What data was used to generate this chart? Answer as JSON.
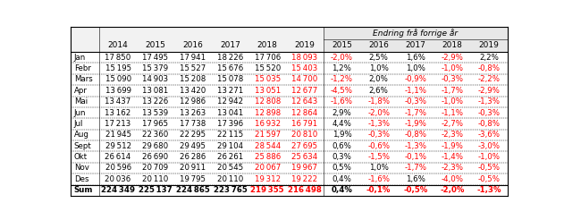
{
  "header_top": "Endring frå forrige år",
  "rows": [
    {
      "label": "Jan",
      "vals": [
        17850,
        17495,
        17941,
        18226,
        17706,
        18093
      ],
      "pct": [
        "-2,0%",
        "2,5%",
        "1,6%",
        "-2,9%",
        "2,2%"
      ],
      "red2018": false,
      "red2019": true
    },
    {
      "label": "Febr",
      "vals": [
        15195,
        15379,
        15527,
        15676,
        15520,
        15403
      ],
      "pct": [
        "1,2%",
        "1,0%",
        "1,0%",
        "-1,0%",
        "-0,8%"
      ],
      "red2018": false,
      "red2019": true
    },
    {
      "label": "Mars",
      "vals": [
        15090,
        14903,
        15208,
        15078,
        15035,
        14700
      ],
      "pct": [
        "-1,2%",
        "2,0%",
        "-0,9%",
        "-0,3%",
        "-2,2%"
      ],
      "red2018": true,
      "red2019": true
    },
    {
      "label": "Apr",
      "vals": [
        13699,
        13081,
        13420,
        13271,
        13051,
        12677
      ],
      "pct": [
        "-4,5%",
        "2,6%",
        "-1,1%",
        "-1,7%",
        "-2,9%"
      ],
      "red2018": true,
      "red2019": true
    },
    {
      "label": "Mai",
      "vals": [
        13437,
        13226,
        12986,
        12942,
        12808,
        12643
      ],
      "pct": [
        "-1,6%",
        "-1,8%",
        "-0,3%",
        "-1,0%",
        "-1,3%"
      ],
      "red2018": true,
      "red2019": true
    },
    {
      "label": "Jun",
      "vals": [
        13162,
        13539,
        13263,
        13041,
        12898,
        12864
      ],
      "pct": [
        "2,9%",
        "-2,0%",
        "-1,7%",
        "-1,1%",
        "-0,3%"
      ],
      "red2018": true,
      "red2019": true
    },
    {
      "label": "Jul",
      "vals": [
        17213,
        17965,
        17738,
        17396,
        16932,
        16791
      ],
      "pct": [
        "4,4%",
        "-1,3%",
        "-1,9%",
        "-2,7%",
        "-0,8%"
      ],
      "red2018": true,
      "red2019": true
    },
    {
      "label": "Aug",
      "vals": [
        21945,
        22360,
        22295,
        22115,
        21597,
        20810
      ],
      "pct": [
        "1,9%",
        "-0,3%",
        "-0,8%",
        "-2,3%",
        "-3,6%"
      ],
      "red2018": true,
      "red2019": true
    },
    {
      "label": "Sept",
      "vals": [
        29512,
        29680,
        29495,
        29104,
        28544,
        27695
      ],
      "pct": [
        "0,6%",
        "-0,6%",
        "-1,3%",
        "-1,9%",
        "-3,0%"
      ],
      "red2018": true,
      "red2019": true
    },
    {
      "label": "Okt",
      "vals": [
        26614,
        26690,
        26286,
        26261,
        25886,
        25634
      ],
      "pct": [
        "0,3%",
        "-1,5%",
        "-0,1%",
        "-1,4%",
        "-1,0%"
      ],
      "red2018": true,
      "red2019": true
    },
    {
      "label": "Nov",
      "vals": [
        20596,
        20709,
        20911,
        20545,
        20067,
        19967
      ],
      "pct": [
        "0,5%",
        "1,0%",
        "-1,7%",
        "-2,3%",
        "-0,5%"
      ],
      "red2018": true,
      "red2019": true
    },
    {
      "label": "Des",
      "vals": [
        20036,
        20110,
        19795,
        20110,
        19312,
        19222
      ],
      "pct": [
        "0,4%",
        "-1,6%",
        "1,6%",
        "-4,0%",
        "-0,5%"
      ],
      "red2018": true,
      "red2019": true
    },
    {
      "label": "Sum",
      "vals": [
        224349,
        225137,
        224865,
        223765,
        219355,
        216498
      ],
      "pct": [
        "0,4%",
        "-0,1%",
        "-0,5%",
        "-2,0%",
        "-1,3%"
      ],
      "red2018": true,
      "red2019": true
    }
  ],
  "col_year_headers": [
    "2014",
    "2015",
    "2016",
    "2017",
    "2018",
    "2019"
  ],
  "col_pct_headers": [
    "2015",
    "2016",
    "2017",
    "2018",
    "2019"
  ],
  "black": "#000000",
  "red": "#FF0000",
  "header_bg": "#f0f0f0",
  "pct_header_bg": "#dcdcdc",
  "data_fs": 6.2,
  "header_fs": 6.5
}
